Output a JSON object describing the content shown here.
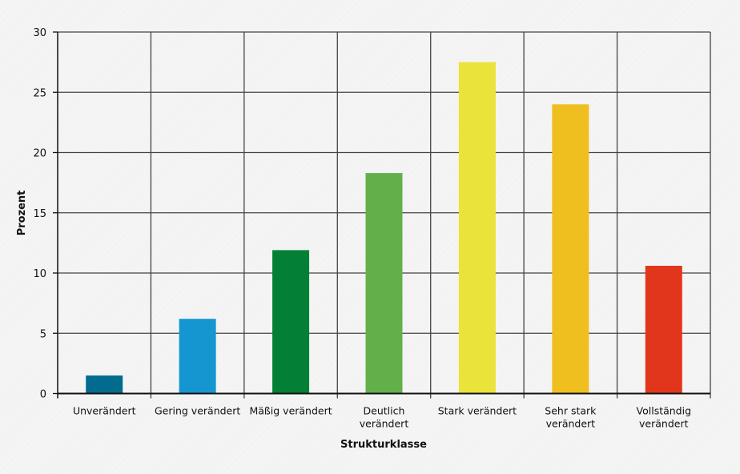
{
  "chart_data": {
    "type": "bar",
    "title": "",
    "xlabel": "Strukturklasse",
    "ylabel": "Prozent",
    "ylim": [
      0,
      30
    ],
    "yticks": [
      0,
      5,
      10,
      15,
      20,
      25,
      30
    ],
    "grid": true,
    "categories": [
      [
        "Unverändert"
      ],
      [
        "Gering verändert"
      ],
      [
        "Mäßig verändert"
      ],
      [
        "Deutlich",
        "verändert"
      ],
      [
        "Stark verändert"
      ],
      [
        "Sehr stark",
        "verändert"
      ],
      [
        "Vollständig",
        "verändert"
      ]
    ],
    "values": [
      1.5,
      6.2,
      11.9,
      18.3,
      27.5,
      24.0,
      10.6
    ],
    "colors": [
      "#026c8f",
      "#1596d0",
      "#048036",
      "#63b04a",
      "#e9e33a",
      "#efbf1f",
      "#e2361c"
    ]
  }
}
